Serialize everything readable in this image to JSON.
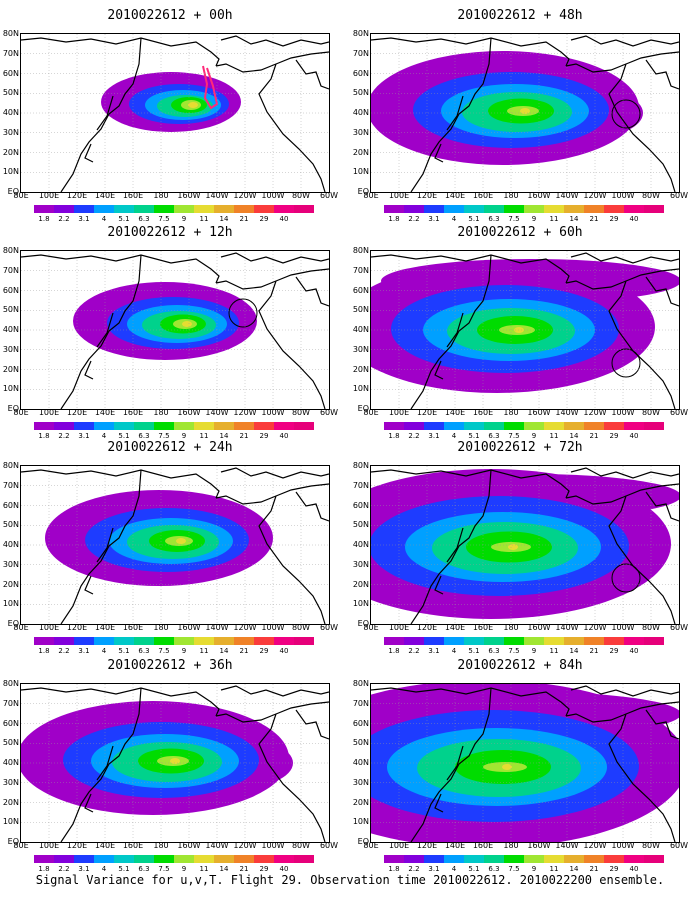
{
  "figure": {
    "caption": "Signal Variance for u,v,T. Flight 29. Observation time 2010022612. 2010022200 ensemble."
  },
  "axes": {
    "lat_labels": [
      "80N",
      "70N",
      "60N",
      "50N",
      "40N",
      "30N",
      "20N",
      "10N",
      "EQ"
    ],
    "lon_labels": [
      "80E",
      "100E",
      "120E",
      "140E",
      "160E",
      "180",
      "160W",
      "140W",
      "120W",
      "100W",
      "80W",
      "60W"
    ]
  },
  "colorbar": {
    "labels": [
      "1.8",
      "2.2",
      "3.1",
      "4",
      "5.1",
      "6.3",
      "7.5",
      "9",
      "11",
      "14",
      "21",
      "29",
      "40"
    ],
    "colors": [
      "#a000c8",
      "#8200dc",
      "#1e3cff",
      "#00a0ff",
      "#00c8c8",
      "#00d28c",
      "#00dc00",
      "#a0e632",
      "#e6dc32",
      "#e6af2d",
      "#f08228",
      "#fa3c3c",
      "#f00082"
    ]
  },
  "panels": [
    {
      "title": "2010022612 + 00h",
      "level": 0
    },
    {
      "title": "2010022612 + 48h",
      "level": 3
    },
    {
      "title": "2010022612 + 12h",
      "level": 1
    },
    {
      "title": "2010022612 + 60h",
      "level": 4
    },
    {
      "title": "2010022612 + 24h",
      "level": 2
    },
    {
      "title": "2010022612 + 72h",
      "level": 5
    },
    {
      "title": "2010022612 + 36h",
      "level": 3
    },
    {
      "title": "2010022612 + 84h",
      "level": 6
    }
  ]
}
